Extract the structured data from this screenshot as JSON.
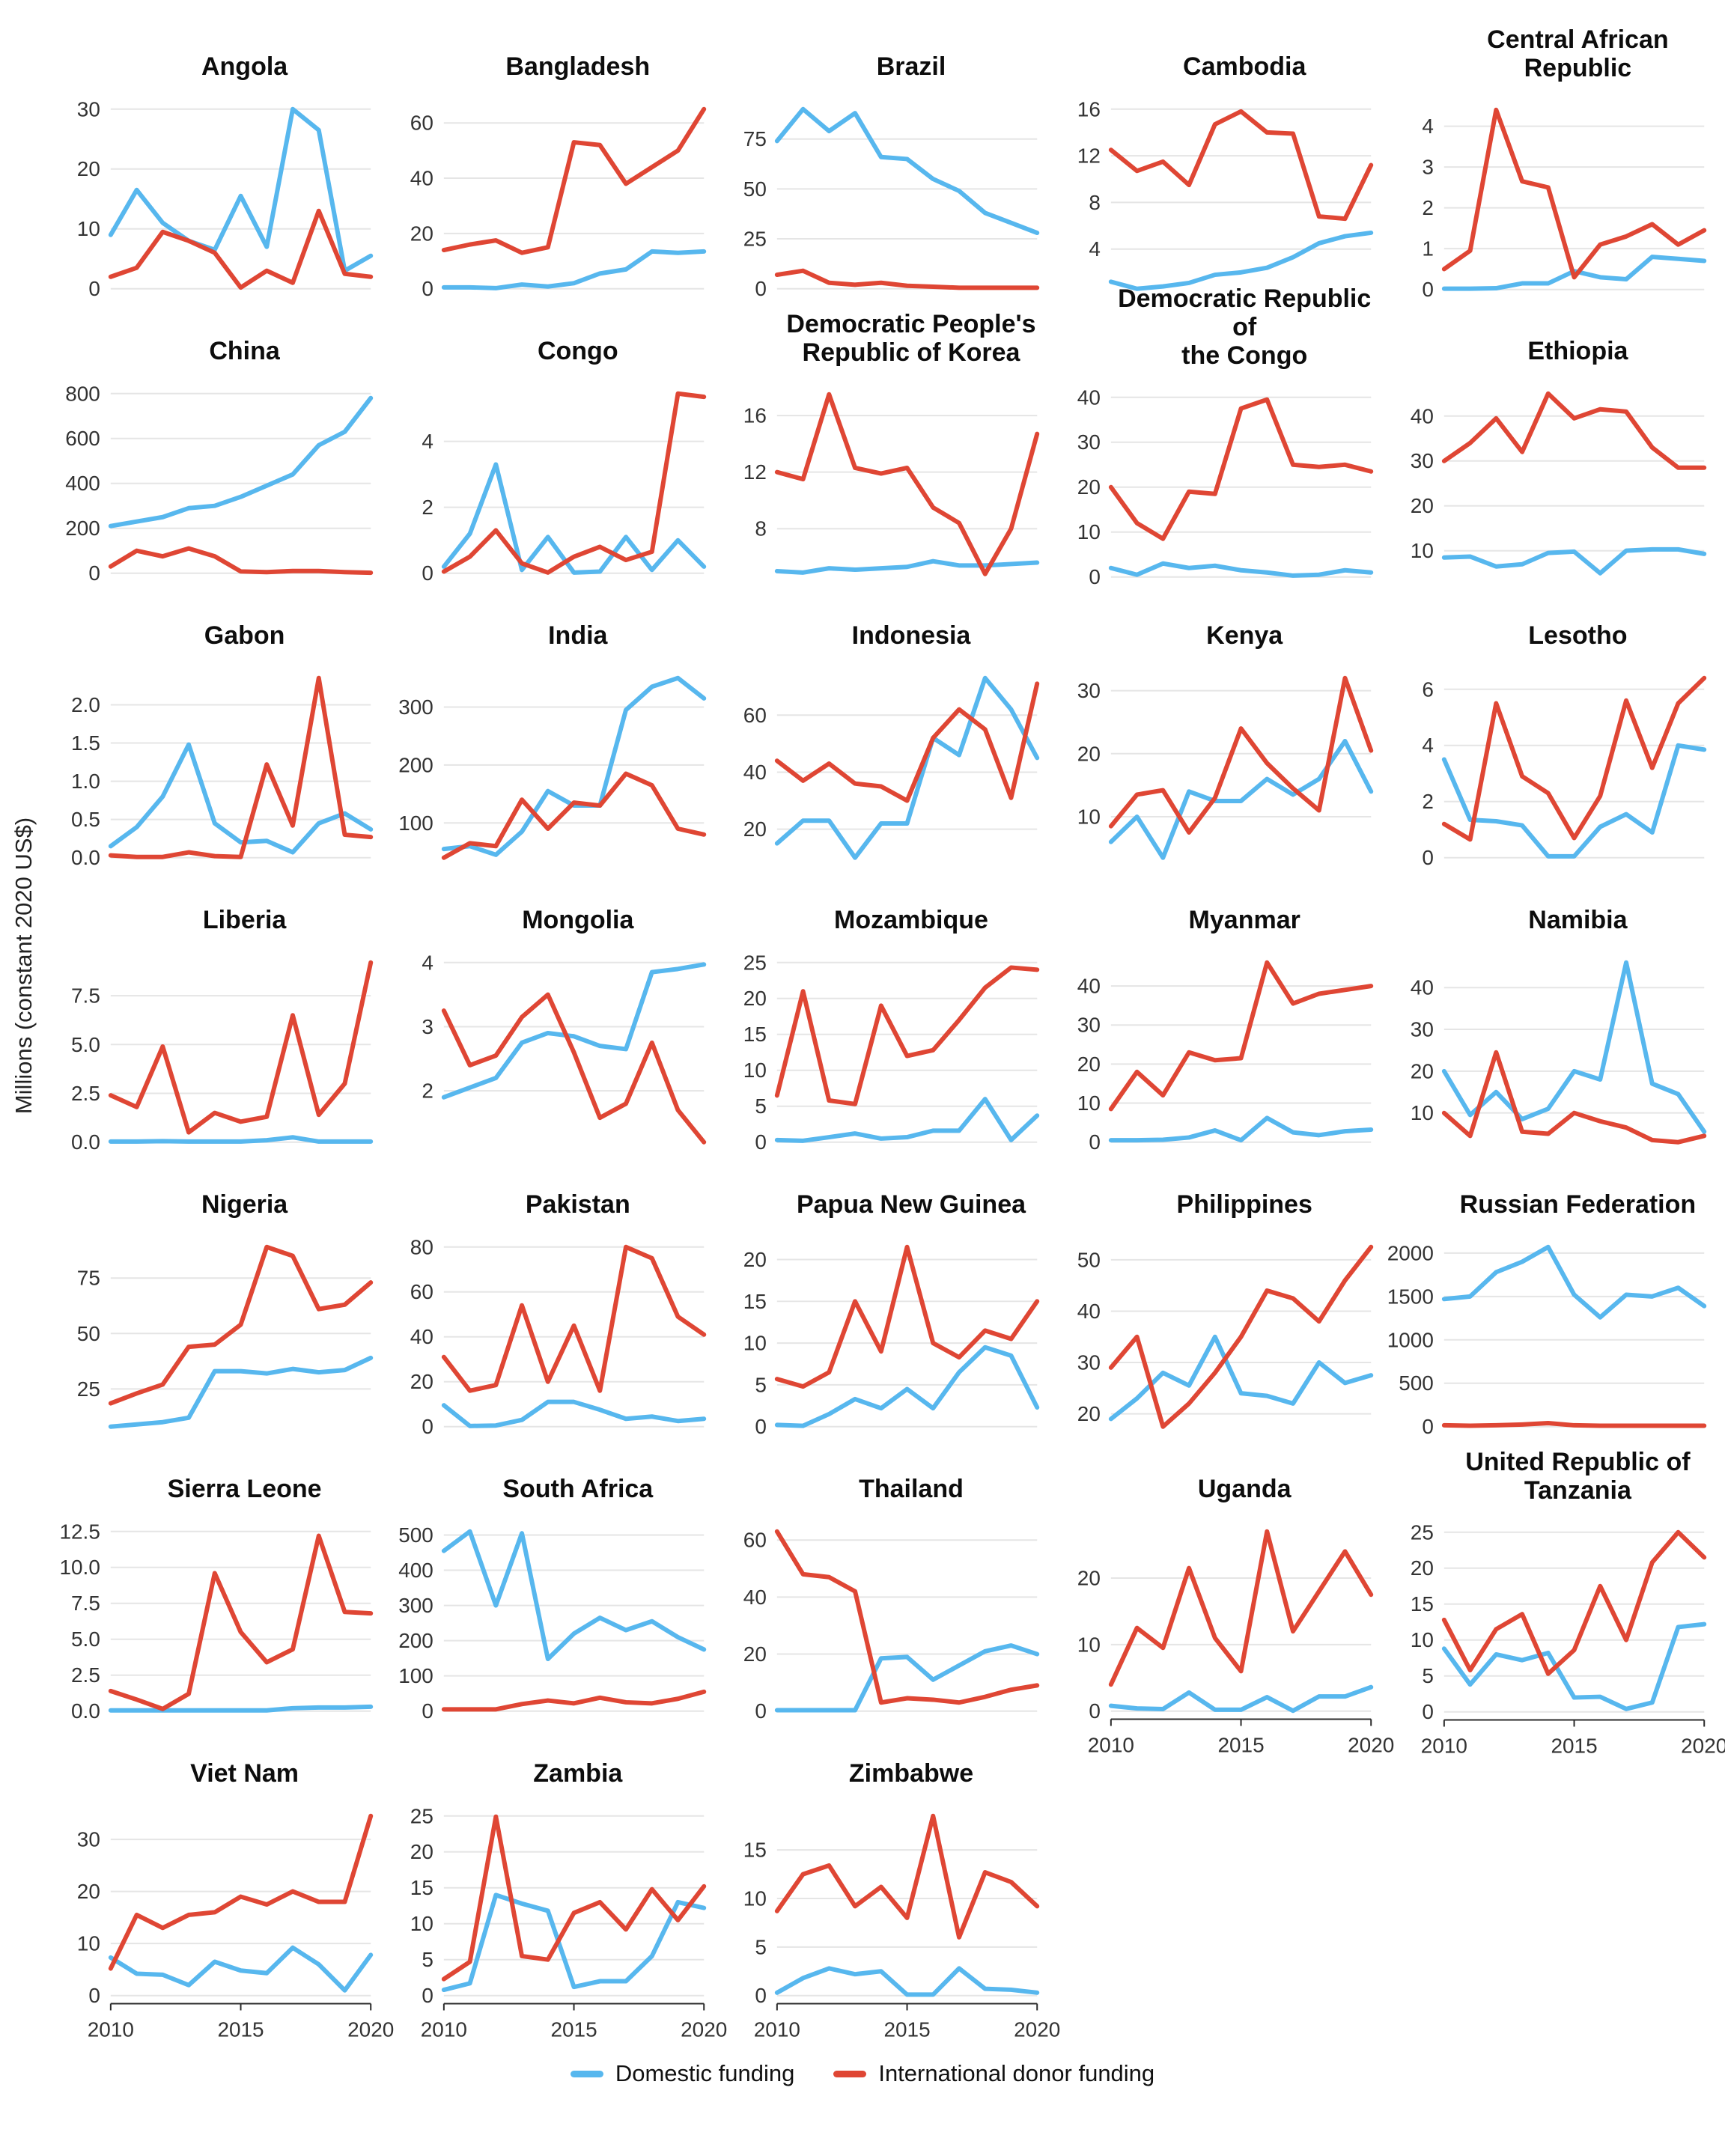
{
  "ylabel": "Millions (constant 2020 US$)",
  "legend": {
    "domestic_label": "Domestic funding",
    "donor_label": "International donor funding"
  },
  "colors": {
    "domestic": "#57b7ee",
    "donor": "#df4634",
    "grid": "#e5e5e5",
    "axis": "#2b2b2b",
    "tick_text": "#333333"
  },
  "chart_data": {
    "type": "line",
    "x": [
      2010,
      2011,
      2012,
      2013,
      2014,
      2015,
      2016,
      2017,
      2018,
      2019,
      2020
    ],
    "x_ticks": [
      2010,
      2015,
      2020
    ],
    "series_names": [
      "Domestic funding",
      "International donor funding"
    ],
    "panels": [
      {
        "title": "Angola",
        "yticks": [
          "0",
          "10",
          "20",
          "30"
        ],
        "show_x_axis": false,
        "domestic": [
          9,
          16.5,
          11,
          8,
          6.5,
          15.5,
          7,
          30,
          26.5,
          3,
          5.5
        ],
        "donor": [
          2,
          3.5,
          9.5,
          8,
          6,
          0.2,
          3,
          1,
          13,
          2.5,
          2
        ]
      },
      {
        "title": "Bangladesh",
        "yticks": [
          "0",
          "20",
          "40",
          "60"
        ],
        "show_x_axis": false,
        "domestic": [
          0.5,
          0.5,
          0.2,
          1.5,
          0.8,
          2,
          5.5,
          7,
          13.5,
          13,
          13.5
        ],
        "donor": [
          14,
          16,
          17.5,
          13,
          15,
          53,
          52,
          38,
          44,
          50,
          65
        ]
      },
      {
        "title": "Brazil",
        "yticks": [
          "0",
          "25",
          "50",
          "75"
        ],
        "show_x_axis": false,
        "domestic": [
          74,
          90,
          79,
          88,
          66,
          65,
          55,
          49,
          38,
          33,
          28
        ],
        "donor": [
          7,
          9,
          3,
          2,
          3,
          1.5,
          1,
          0.5,
          0.5,
          0.5,
          0.5
        ]
      },
      {
        "title": "Cambodia",
        "yticks": [
          "4",
          "8",
          "12",
          "16"
        ],
        "show_x_axis": false,
        "domestic": [
          1.2,
          0.6,
          0.8,
          1.1,
          1.8,
          2,
          2.4,
          3.3,
          4.5,
          5.1,
          5.4
        ],
        "donor": [
          12.5,
          10.7,
          11.5,
          9.5,
          14.7,
          15.8,
          14,
          13.9,
          6.8,
          6.6,
          11.2
        ]
      },
      {
        "title": "Central African Republic",
        "yticks": [
          "0",
          "1",
          "2",
          "3",
          "4"
        ],
        "show_x_axis": false,
        "domestic": [
          0.02,
          0.02,
          0.03,
          0.15,
          0.15,
          0.45,
          0.3,
          0.25,
          0.8,
          0.75,
          0.7
        ],
        "donor": [
          0.5,
          0.95,
          4.4,
          2.65,
          2.5,
          0.3,
          1.1,
          1.3,
          1.6,
          1.1,
          1.45
        ]
      },
      {
        "title": "China",
        "yticks": [
          "0",
          "200",
          "400",
          "600",
          "800"
        ],
        "show_x_axis": false,
        "domestic": [
          210,
          230,
          250,
          290,
          300,
          340,
          390,
          440,
          570,
          630,
          780
        ],
        "donor": [
          30,
          100,
          75,
          110,
          75,
          8,
          5,
          10,
          10,
          5,
          2
        ]
      },
      {
        "title": "Congo",
        "yticks": [
          "0",
          "2",
          "4"
        ],
        "show_x_axis": false,
        "domestic": [
          0.2,
          1.2,
          3.3,
          0.1,
          1.1,
          0.02,
          0.05,
          1.1,
          0.1,
          1.0,
          0.2
        ],
        "donor": [
          0.05,
          0.5,
          1.3,
          0.3,
          0.02,
          0.5,
          0.8,
          0.4,
          0.65,
          5.45,
          5.35
        ]
      },
      {
        "title": "Democratic People's\nRepublic of Korea",
        "yticks": [
          "8",
          "12",
          "16"
        ],
        "show_x_axis": false,
        "domestic": [
          5,
          4.9,
          5.2,
          5.1,
          5.2,
          5.3,
          5.7,
          5.4,
          5.4,
          5.5,
          5.6
        ],
        "donor": [
          12,
          11.5,
          17.5,
          12.3,
          11.9,
          12.3,
          9.5,
          8.4,
          4.8,
          8,
          14.7
        ]
      },
      {
        "title": "Democratic Republic of\nthe Congo",
        "yticks": [
          "0",
          "10",
          "20",
          "30",
          "40"
        ],
        "show_x_axis": false,
        "domestic": [
          2,
          0.5,
          3,
          2,
          2.5,
          1.5,
          1,
          0.3,
          0.5,
          1.5,
          1
        ],
        "donor": [
          20,
          12,
          8.5,
          19,
          18.5,
          37.5,
          39.5,
          25,
          24.5,
          25,
          23.5
        ]
      },
      {
        "title": "Ethiopia",
        "yticks": [
          "10",
          "20",
          "30",
          "40"
        ],
        "show_x_axis": false,
        "domestic": [
          8.5,
          8.7,
          6.5,
          7,
          9.5,
          9.8,
          5,
          10,
          10.3,
          10.3,
          9.3
        ],
        "donor": [
          30,
          34,
          39.5,
          32,
          45,
          39.5,
          41.5,
          41,
          33,
          28.5,
          28.5
        ]
      },
      {
        "title": "Gabon",
        "yticks": [
          "0.0",
          "0.5",
          "1.0",
          "1.5",
          "2.0"
        ],
        "show_x_axis": false,
        "domestic": [
          0.15,
          0.4,
          0.8,
          1.48,
          0.45,
          0.2,
          0.22,
          0.07,
          0.45,
          0.58,
          0.37
        ],
        "donor": [
          0.03,
          0.01,
          0.01,
          0.07,
          0.02,
          0.01,
          1.22,
          0.42,
          2.35,
          0.3,
          0.27
        ]
      },
      {
        "title": "India",
        "yticks": [
          "100",
          "200",
          "300"
        ],
        "show_x_axis": false,
        "domestic": [
          55,
          60,
          45,
          85,
          155,
          130,
          130,
          295,
          335,
          350,
          315
        ],
        "donor": [
          40,
          65,
          60,
          140,
          90,
          135,
          130,
          185,
          165,
          90,
          80
        ]
      },
      {
        "title": "Indonesia",
        "yticks": [
          "20",
          "40",
          "60"
        ],
        "show_x_axis": false,
        "domestic": [
          15,
          23,
          23,
          10,
          22,
          22,
          52,
          46,
          73,
          62,
          45
        ],
        "donor": [
          44,
          37,
          43,
          36,
          35,
          30,
          52,
          62,
          55,
          31,
          71
        ]
      },
      {
        "title": "Kenya",
        "yticks": [
          "10",
          "20",
          "30"
        ],
        "show_x_axis": false,
        "domestic": [
          6,
          10,
          3.5,
          14,
          12.5,
          12.5,
          16,
          13.5,
          16,
          22,
          14
        ],
        "donor": [
          8.5,
          13.5,
          14.2,
          7.5,
          13,
          24,
          18.5,
          14.5,
          11,
          32,
          20.5
        ]
      },
      {
        "title": "Lesotho",
        "yticks": [
          "0",
          "2",
          "4",
          "6"
        ],
        "show_x_axis": false,
        "domestic": [
          3.5,
          1.35,
          1.3,
          1.15,
          0.05,
          0.05,
          1.1,
          1.55,
          0.9,
          4,
          3.85
        ],
        "donor": [
          1.2,
          0.65,
          5.5,
          2.9,
          2.3,
          0.7,
          2.2,
          5.6,
          3.2,
          5.5,
          6.4
        ]
      },
      {
        "title": "Liberia",
        "yticks": [
          "0.0",
          "2.5",
          "5.0",
          "7.5"
        ],
        "show_x_axis": false,
        "domestic": [
          0.03,
          0.03,
          0.05,
          0.03,
          0.03,
          0.03,
          0.1,
          0.25,
          0.03,
          0.03,
          0.03
        ],
        "donor": [
          2.4,
          1.8,
          4.9,
          0.5,
          1.5,
          1.05,
          1.3,
          6.5,
          1.4,
          3,
          9.2
        ]
      },
      {
        "title": "Mongolia",
        "yticks": [
          "2",
          "3",
          "4"
        ],
        "show_x_axis": false,
        "domestic": [
          1.9,
          2.05,
          2.2,
          2.75,
          2.9,
          2.85,
          2.7,
          2.65,
          3.85,
          3.9,
          3.97
        ],
        "donor": [
          3.25,
          2.4,
          2.55,
          3.15,
          3.5,
          2.6,
          1.58,
          1.8,
          2.75,
          1.7,
          1.2
        ]
      },
      {
        "title": "Mozambique",
        "yticks": [
          "0",
          "5",
          "10",
          "15",
          "20",
          "25"
        ],
        "show_x_axis": false,
        "domestic": [
          0.3,
          0.2,
          0.7,
          1.2,
          0.5,
          0.7,
          1.6,
          1.6,
          6,
          0.3,
          3.7
        ],
        "donor": [
          6.5,
          21,
          5.8,
          5.3,
          19,
          12,
          12.8,
          17,
          21.5,
          24.3,
          24
        ]
      },
      {
        "title": "Myanmar",
        "yticks": [
          "0",
          "10",
          "20",
          "30",
          "40"
        ],
        "show_x_axis": false,
        "domestic": [
          0.5,
          0.5,
          0.6,
          1.2,
          3,
          0.5,
          6.2,
          2.5,
          1.8,
          2.8,
          3.2
        ],
        "donor": [
          8.5,
          18,
          12,
          23,
          21,
          21.5,
          46,
          35.5,
          38,
          39,
          40
        ]
      },
      {
        "title": "Namibia",
        "yticks": [
          "10",
          "20",
          "30",
          "40"
        ],
        "show_x_axis": false,
        "domestic": [
          20,
          9.5,
          15,
          8.5,
          11,
          20,
          18,
          46,
          17,
          14.5,
          5.5
        ],
        "donor": [
          10,
          4.5,
          24.5,
          5.5,
          5,
          10,
          8,
          6.5,
          3.5,
          3,
          4.5
        ]
      },
      {
        "title": "Nigeria",
        "yticks": [
          "25",
          "50",
          "75"
        ],
        "show_x_axis": false,
        "domestic": [
          8,
          9,
          10,
          12,
          33,
          33,
          32,
          34,
          32.5,
          33.5,
          39
        ],
        "donor": [
          18.5,
          23,
          27,
          44,
          45,
          54,
          89,
          85,
          61,
          63,
          73
        ]
      },
      {
        "title": "Pakistan",
        "yticks": [
          "0",
          "20",
          "40",
          "60",
          "80"
        ],
        "show_x_axis": false,
        "domestic": [
          9.5,
          0.3,
          0.5,
          3,
          11,
          11,
          7.5,
          3.5,
          4.5,
          2.5,
          3.5
        ],
        "donor": [
          31,
          16,
          18.5,
          54,
          20,
          45,
          16,
          80,
          75,
          49,
          41
        ]
      },
      {
        "title": "Papua New Guinea",
        "yticks": [
          "0",
          "5",
          "10",
          "15",
          "20"
        ],
        "show_x_axis": false,
        "domestic": [
          0.2,
          0.1,
          1.5,
          3.3,
          2.2,
          4.5,
          2.2,
          6.5,
          9.5,
          8.5,
          2.3
        ],
        "donor": [
          5.7,
          4.8,
          6.5,
          15,
          9,
          21.5,
          10,
          8.3,
          11.5,
          10.5,
          15
        ]
      },
      {
        "title": "Philippines",
        "yticks": [
          "20",
          "30",
          "40",
          "50"
        ],
        "show_x_axis": false,
        "domestic": [
          19,
          23,
          28,
          25.5,
          35,
          24,
          23.5,
          22,
          30,
          26,
          27.5
        ],
        "donor": [
          29,
          35,
          17.5,
          22,
          28,
          35,
          44,
          42.5,
          38,
          46,
          52.5
        ]
      },
      {
        "title": "Russian Federation",
        "yticks": [
          "0",
          "500",
          "1000",
          "1500",
          "2000"
        ],
        "show_x_axis": false,
        "domestic": [
          1470,
          1500,
          1780,
          1900,
          2070,
          1520,
          1260,
          1520,
          1500,
          1600,
          1390
        ],
        "donor": [
          15,
          10,
          15,
          25,
          40,
          15,
          10,
          10,
          10,
          10,
          10
        ]
      },
      {
        "title": "Sierra Leone",
        "yticks": [
          "0.0",
          "2.5",
          "5.0",
          "7.5",
          "10.0",
          "12.5"
        ],
        "show_x_axis": false,
        "domestic": [
          0.05,
          0.05,
          0.05,
          0.05,
          0.05,
          0.05,
          0.05,
          0.2,
          0.25,
          0.25,
          0.3
        ],
        "donor": [
          1.4,
          0.8,
          0.15,
          1.2,
          9.6,
          5.5,
          3.4,
          4.3,
          12.2,
          6.9,
          6.8
        ]
      },
      {
        "title": "South Africa",
        "yticks": [
          "0",
          "100",
          "200",
          "300",
          "400",
          "500"
        ],
        "show_x_axis": false,
        "domestic": [
          455,
          510,
          300,
          505,
          148,
          220,
          265,
          230,
          255,
          210,
          175
        ],
        "donor": [
          5,
          5,
          5,
          20,
          30,
          22,
          38,
          25,
          22,
          35,
          55
        ]
      },
      {
        "title": "Thailand",
        "yticks": [
          "0",
          "20",
          "40",
          "60"
        ],
        "show_x_axis": false,
        "domestic": [
          0.3,
          0.3,
          0.3,
          0.3,
          18.5,
          19,
          11,
          16,
          21,
          23,
          20
        ],
        "donor": [
          63,
          48,
          47,
          42,
          3,
          4.5,
          4,
          3,
          5,
          7.5,
          9
        ]
      },
      {
        "title": "Uganda",
        "yticks": [
          "0",
          "10",
          "20"
        ],
        "show_x_axis": true,
        "domestic": [
          0.8,
          0.4,
          0.3,
          2.8,
          0.2,
          0.2,
          2.1,
          0.05,
          2.2,
          2.2,
          3.6
        ],
        "donor": [
          4,
          12.5,
          9.5,
          21.5,
          11,
          6,
          27,
          12,
          18,
          24,
          17.5
        ]
      },
      {
        "title": "United Republic of\nTanzania",
        "yticks": [
          "0",
          "5",
          "10",
          "15",
          "20",
          "25"
        ],
        "show_x_axis": true,
        "domestic": [
          8.8,
          3.8,
          8,
          7.2,
          8.2,
          2,
          2.1,
          0.4,
          1.3,
          11.8,
          12.2
        ],
        "donor": [
          12.8,
          5.8,
          11.5,
          13.6,
          5.3,
          8.6,
          17.5,
          10,
          20.8,
          25,
          21.5
        ]
      },
      {
        "title": "Viet Nam",
        "yticks": [
          "0",
          "10",
          "20",
          "30"
        ],
        "show_x_axis": true,
        "domestic": [
          7.3,
          4.2,
          4,
          2,
          6.5,
          4.8,
          4.3,
          9.2,
          6,
          1,
          7.8
        ],
        "donor": [
          5.2,
          15.5,
          13,
          15.5,
          16,
          19,
          17.5,
          20,
          18,
          18,
          34.5
        ]
      },
      {
        "title": "Zambia",
        "yticks": [
          "0",
          "5",
          "10",
          "15",
          "20",
          "25"
        ],
        "show_x_axis": true,
        "domestic": [
          0.8,
          1.7,
          14,
          12.8,
          11.8,
          1.2,
          2,
          2,
          5.5,
          13,
          12.2
        ],
        "donor": [
          2.3,
          4.7,
          24.9,
          5.5,
          5,
          11.5,
          13,
          9.2,
          14.8,
          10.5,
          15.2
        ]
      },
      {
        "title": "Zimbabwe",
        "yticks": [
          "0",
          "5",
          "10",
          "15"
        ],
        "show_x_axis": true,
        "domestic": [
          0.3,
          1.8,
          2.8,
          2.2,
          2.5,
          0.1,
          0.1,
          2.8,
          0.7,
          0.6,
          0.3
        ],
        "donor": [
          8.7,
          12.5,
          13.4,
          9.2,
          11.2,
          8,
          18.5,
          6,
          12.7,
          11.7,
          9.2
        ]
      }
    ]
  }
}
